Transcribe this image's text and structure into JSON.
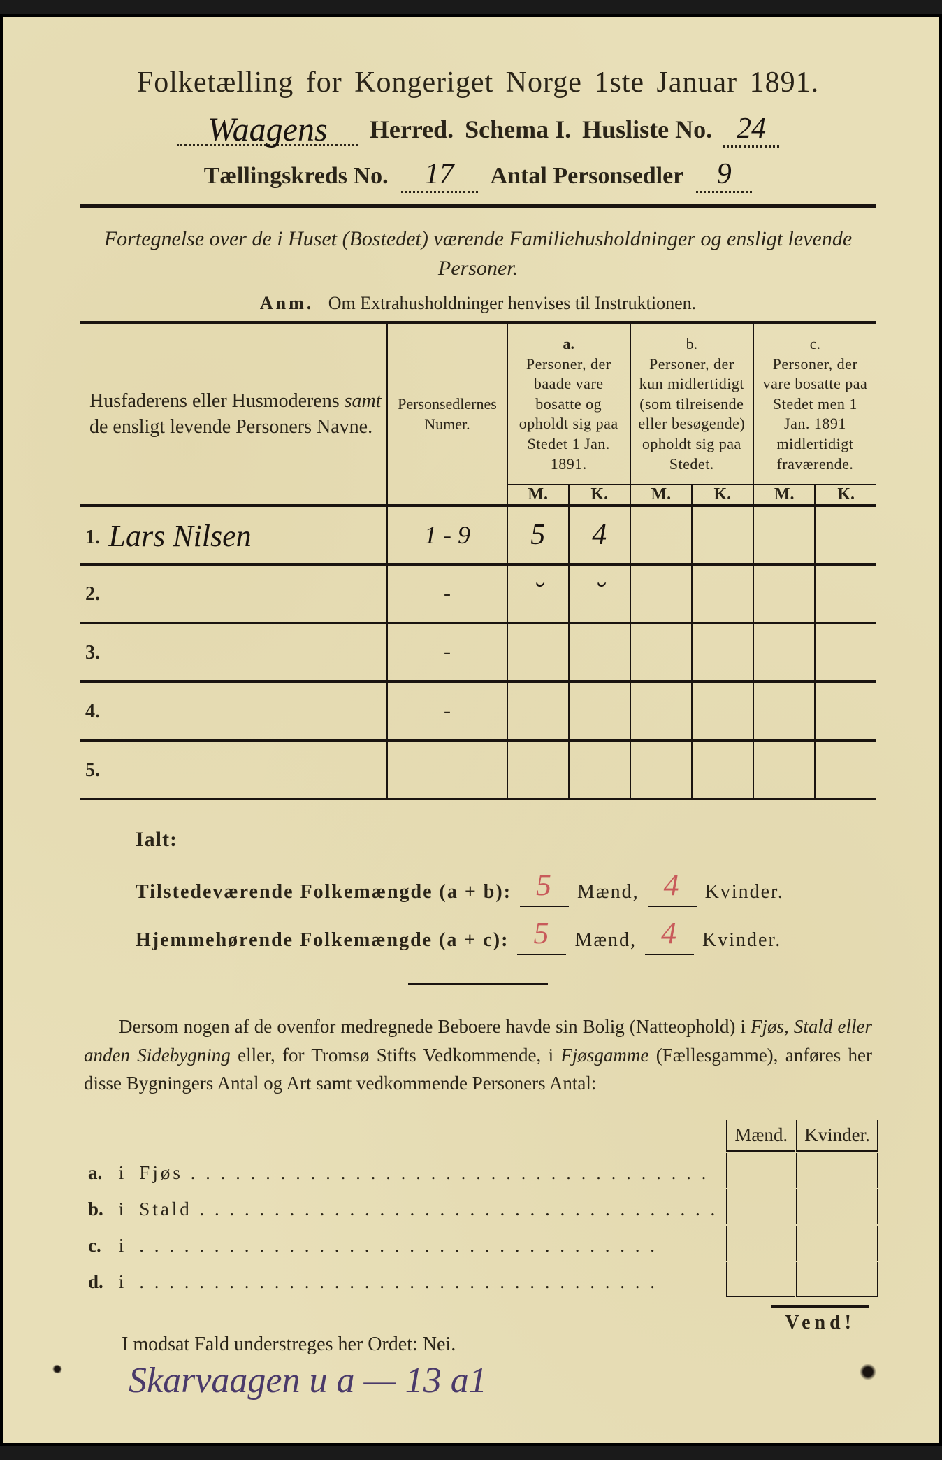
{
  "colors": {
    "paper": "#e8dfb8",
    "ink": "#1a1410",
    "red_ink": "#c85a5a",
    "purple_ink": "#4a3a6a"
  },
  "header": {
    "title": "Folketælling for Kongeriget Norge 1ste Januar 1891.",
    "herred_value": "Waagens",
    "herred_label": "Herred.",
    "schema_label": "Schema I.",
    "husliste_label": "Husliste No.",
    "husliste_no": "24",
    "kreds_label": "Tællingskreds No.",
    "kreds_no": "17",
    "antal_label": "Antal Personsedler",
    "antal_value": "9"
  },
  "subtitle": {
    "line": "Fortegnelse over de i Huset (Bostedet) værende Familiehusholdninger og ensligt levende Personer.",
    "anm_label": "Anm.",
    "anm_text": "Om Extrahusholdninger henvises til Instruktionen."
  },
  "table": {
    "col1_header": "Husfaderens eller Husmoderens samt de ensligt levende Personers Navne.",
    "col2_header": "Personsedlernes Numer.",
    "col_a_label": "a.",
    "col_a_text": "Personer, der baade vare bosatte og opholdt sig paa Stedet 1 Jan. 1891.",
    "col_b_label": "b.",
    "col_b_text": "Personer, der kun midlertidigt (som tilreisende eller besøgende) opholdt sig paa Stedet.",
    "col_c_label": "c.",
    "col_c_text": "Personer, der vare bosatte paa Stedet men 1 Jan. 1891 midlertidigt fraværende.",
    "m_label": "M.",
    "k_label": "K.",
    "rows": [
      {
        "n": "1.",
        "name": "Lars Nilsen",
        "numer": "1 - 9",
        "a_m": "5",
        "a_k": "4",
        "b_m": "",
        "b_k": "",
        "c_m": "",
        "c_k": ""
      },
      {
        "n": "2.",
        "name": "",
        "numer": "-",
        "a_m": "˘",
        "a_k": "˘",
        "b_m": "",
        "b_k": "",
        "c_m": "",
        "c_k": ""
      },
      {
        "n": "3.",
        "name": "",
        "numer": "-",
        "a_m": "",
        "a_k": "",
        "b_m": "",
        "b_k": "",
        "c_m": "",
        "c_k": ""
      },
      {
        "n": "4.",
        "name": "",
        "numer": "-",
        "a_m": "",
        "a_k": "",
        "b_m": "",
        "b_k": "",
        "c_m": "",
        "c_k": ""
      },
      {
        "n": "5.",
        "name": "",
        "numer": "",
        "a_m": "",
        "a_k": "",
        "b_m": "",
        "b_k": "",
        "c_m": "",
        "c_k": ""
      }
    ]
  },
  "totals": {
    "ialt_label": "Ialt:",
    "line1_label": "Tilstedeværende Folkemængde (a + b):",
    "line1_m": "5",
    "line1_k": "4",
    "line2_label": "Hjemmehørende Folkemængde (a + c):",
    "line2_m": "5",
    "line2_k": "4",
    "maend": "Mænd,",
    "kvinder": "Kvinder."
  },
  "paragraph": {
    "text1": "Dersom nogen af de ovenfor medregnede Beboere havde sin Bolig (Natteophold) i ",
    "ital1": "Fjøs, Stald eller anden Sidebygning",
    "text2": " eller, for Tromsø Stifts Vedkommende, i ",
    "ital2": "Fjøsgamme",
    "text3": " (Fællesgamme), anføres her disse Bygningers Antal og Art samt vedkommende Personers Antal:"
  },
  "building_table": {
    "maend": "Mænd.",
    "kvinder": "Kvinder.",
    "rows": [
      {
        "letter": "a.",
        "i": "i",
        "label": "Fjøs"
      },
      {
        "letter": "b.",
        "i": "i",
        "label": "Stald"
      },
      {
        "letter": "c.",
        "i": "i",
        "label": ""
      },
      {
        "letter": "d.",
        "i": "i",
        "label": ""
      }
    ]
  },
  "nei_line": "I modsat Fald understreges her Ordet: Nei.",
  "vend": "Vend!",
  "bottom_note": "Skarvaagen  u  a  —  13 a1"
}
